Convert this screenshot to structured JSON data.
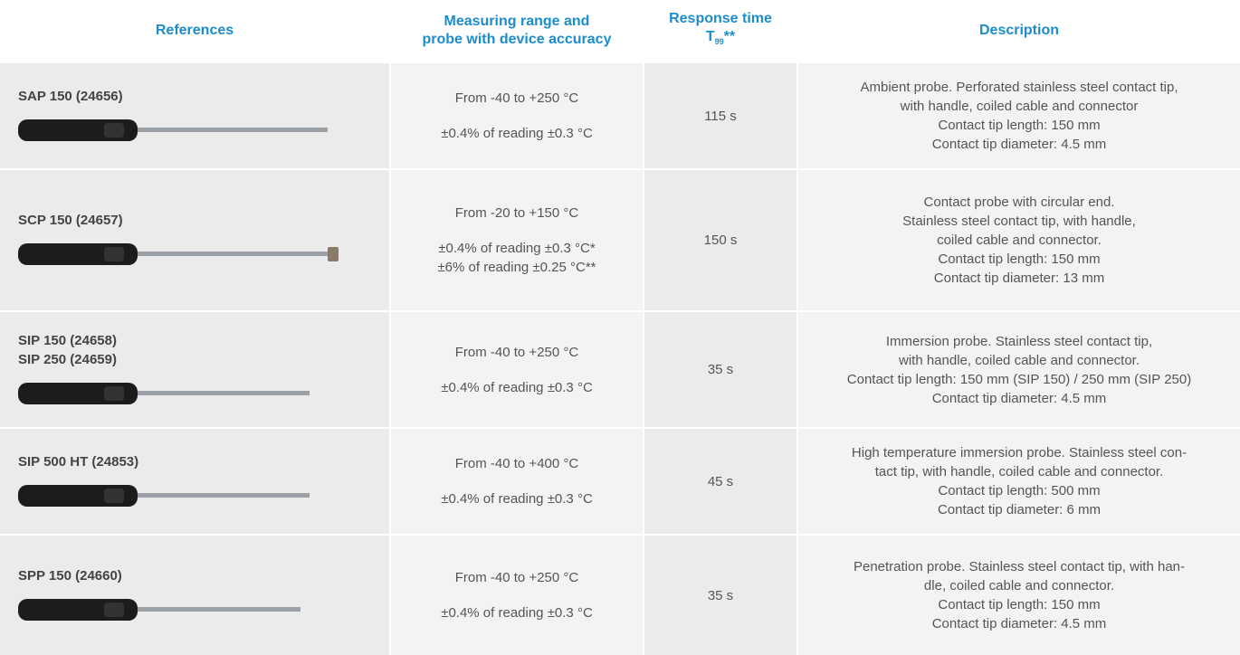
{
  "header": {
    "references": "References",
    "range": [
      "Measuring range and",
      "probe with device accuracy"
    ],
    "response": {
      "text": "Response time",
      "symbol": "T",
      "subscript": "99",
      "suffix": "**"
    },
    "description": "Description"
  },
  "rows": [
    {
      "references": [
        "SAP 150 (24656)"
      ],
      "range": "From -40 to +250 °C",
      "accuracy": [
        "±0.4% of reading ±0.3 °C"
      ],
      "response": "115 s",
      "description": [
        "Ambient probe. Perforated stainless steel contact tip,",
        "with handle, coiled cable and connector",
        "Contact tip length: 150 mm",
        "Contact tip diameter: 4.5 mm"
      ]
    },
    {
      "references": [
        "SCP 150 (24657)"
      ],
      "range": "From -20 to +150 °C",
      "accuracy": [
        "±0.4% of reading ±0.3 °C*",
        "±6% of reading ±0.25 °C**"
      ],
      "response": "150 s",
      "description": [
        "Contact probe with circular end.",
        "Stainless steel contact tip, with handle,",
        "coiled cable and connector.",
        "Contact tip length: 150 mm",
        "Contact tip diameter: 13 mm"
      ]
    },
    {
      "references": [
        "SIP 150 (24658)",
        "SIP 250 (24659)"
      ],
      "range": "From -40 to +250 °C",
      "accuracy": [
        "±0.4% of reading ±0.3 °C"
      ],
      "response": "35 s",
      "description": [
        "Immersion probe. Stainless steel contact tip,",
        "with handle, coiled cable and connector.",
        "Contact tip length: 150 mm (SIP 150) / 250 mm (SIP 250)",
        "Contact tip diameter: 4.5 mm"
      ]
    },
    {
      "references": [
        "SIP 500 HT (24853)"
      ],
      "range": "From -40 to +400 °C",
      "accuracy": [
        "±0.4% of reading ±0.3 °C"
      ],
      "response": "45 s",
      "description": [
        "High temperature immersion probe. Stainless steel con-",
        "tact tip, with handle, coiled cable and connector.",
        "Contact tip length: 500 mm",
        "Contact tip diameter: 6 mm"
      ]
    },
    {
      "references": [
        "SPP 150 (24660)"
      ],
      "range": "From -40 to +250 °C",
      "accuracy": [
        "±0.4% of reading ±0.3 °C"
      ],
      "response": "35 s",
      "description": [
        "Penetration probe. Stainless steel contact tip, with han-",
        "dle, coiled cable and connector.",
        "Contact tip length: 150 mm",
        "Contact tip diameter: 4.5 mm"
      ]
    }
  ]
}
